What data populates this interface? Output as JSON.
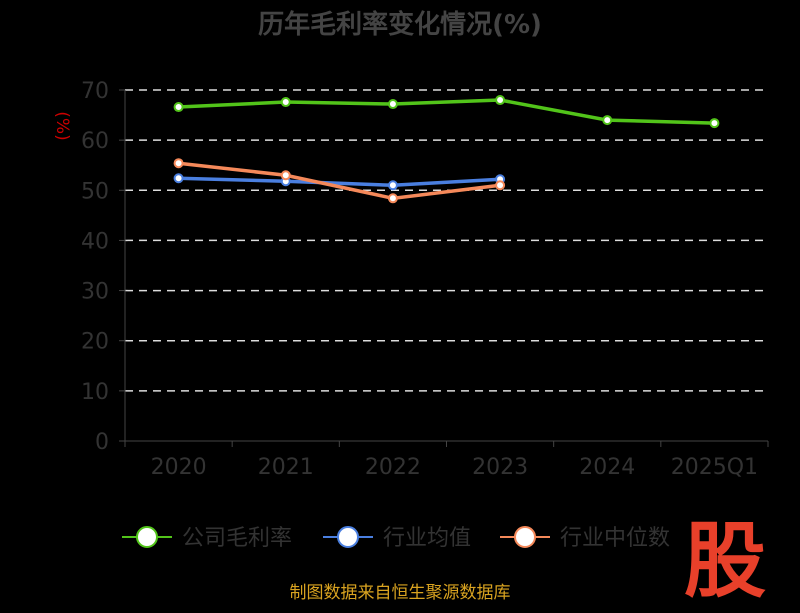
{
  "chart_data": {
    "type": "line",
    "title": "历年毛利率变化情况(%)",
    "ylabel": "(%)",
    "xlabel": "",
    "categories": [
      "2020",
      "2021",
      "2022",
      "2023",
      "2024",
      "2025Q1"
    ],
    "ylim": [
      0,
      70
    ],
    "yticks": [
      "0",
      "10",
      "20",
      "30",
      "40",
      "50",
      "60",
      "70"
    ],
    "grid": true,
    "legend_position": "bottom",
    "series": [
      {
        "name": "公司毛利率",
        "color": "#52c41a",
        "values": [
          66.6,
          67.6,
          67.2,
          68.0,
          64.0,
          63.4
        ]
      },
      {
        "name": "行业均值",
        "color": "#4a7fe0",
        "values": [
          52.4,
          51.8,
          51.0,
          52.2,
          null,
          null
        ]
      },
      {
        "name": "行业中位数",
        "color": "#f5895a",
        "values": [
          55.4,
          53.0,
          48.4,
          51.0,
          null,
          null
        ]
      }
    ]
  },
  "footer": "制图数据来自恒生聚源数据库",
  "logo": "股"
}
